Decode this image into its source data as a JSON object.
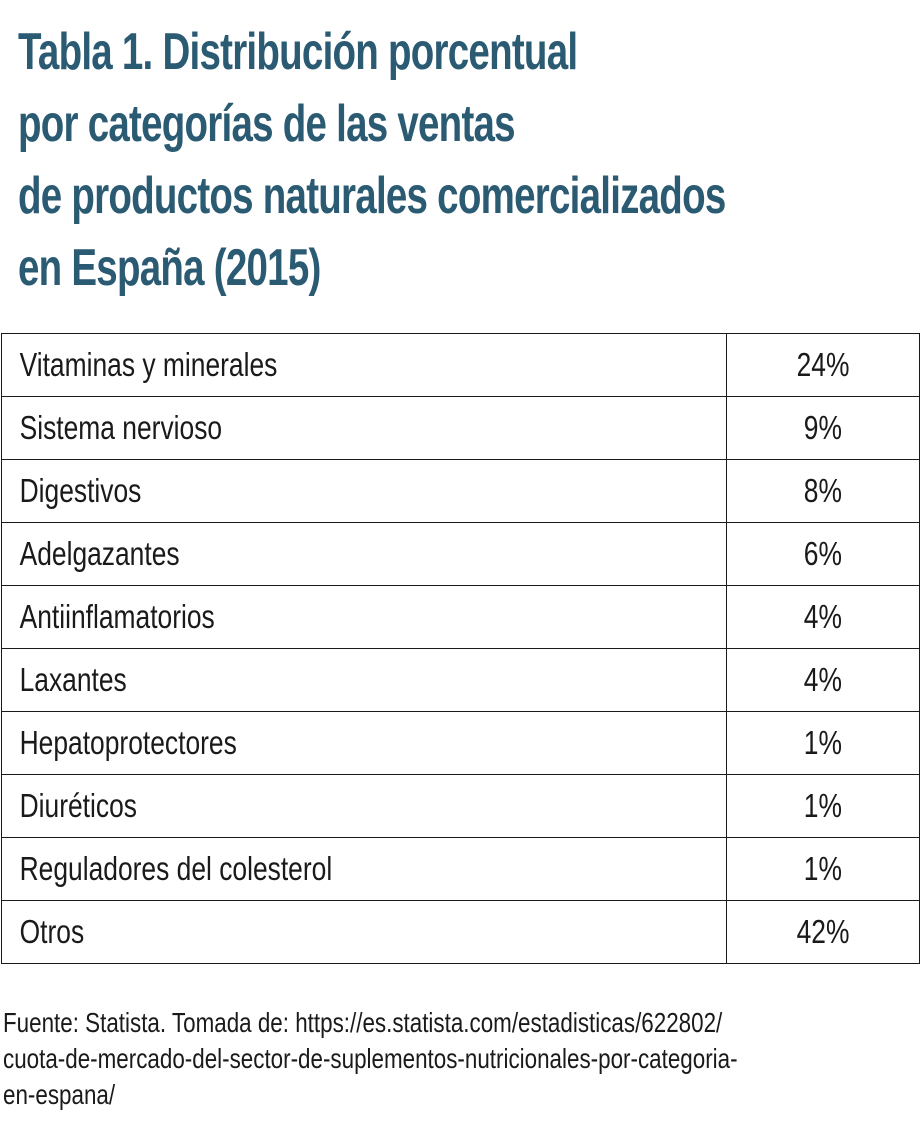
{
  "title": {
    "lines": [
      "Tabla 1. Distribución porcentual",
      "por categorías de las ventas",
      "de productos naturales comercializados",
      "en España (2015)"
    ]
  },
  "table": {
    "rows": [
      {
        "category": "Vitaminas y minerales",
        "value": "24%"
      },
      {
        "category": "Sistema nervioso",
        "value": "9%"
      },
      {
        "category": "Digestivos",
        "value": "8%"
      },
      {
        "category": "Adelgazantes",
        "value": "6%"
      },
      {
        "category": "Antiinflamatorios",
        "value": "4%"
      },
      {
        "category": "Laxantes",
        "value": "4%"
      },
      {
        "category": "Hepatoprotectores",
        "value": "1%"
      },
      {
        "category": "Diuréticos",
        "value": "1%"
      },
      {
        "category": "Reguladores del colesterol",
        "value": "1%"
      },
      {
        "category": "Otros",
        "value": "42%"
      }
    ]
  },
  "source": {
    "lines": [
      "Fuente: Statista. Tomada de: https://es.statista.com/estadisticas/622802/",
      "cuota-de-mercado-del-sector-de-suplementos-nutricionales-por-categoria-",
      "en-espana/"
    ]
  },
  "colors": {
    "title": "#2b5a73",
    "text": "#1a1a1a",
    "border": "#1a1a1a",
    "background": "#ffffff"
  }
}
